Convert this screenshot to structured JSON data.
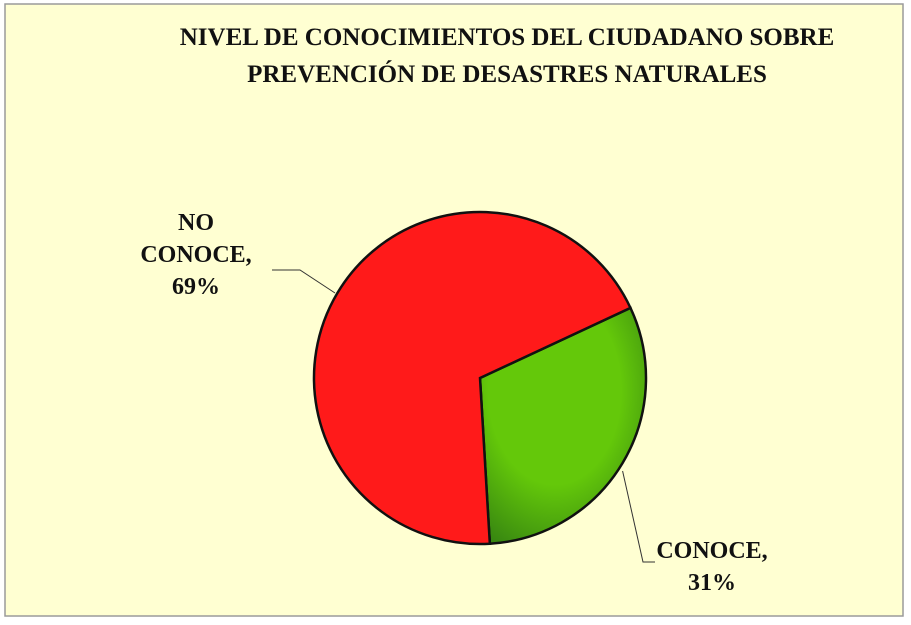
{
  "chart_data": {
    "type": "pie",
    "title": [
      "NIVEL DE CONOCIMIENTOS DEL CIUDADANO SOBRE",
      "PREVENCIÓN DE DESASTRES NATURALES"
    ],
    "categories": [
      "CONOCE,",
      "NO CONOCE,"
    ],
    "values": [
      31,
      69
    ],
    "value_labels": [
      "31%",
      "69%"
    ],
    "colors": [
      "#5cbf0a",
      "#ff1a1a"
    ]
  }
}
